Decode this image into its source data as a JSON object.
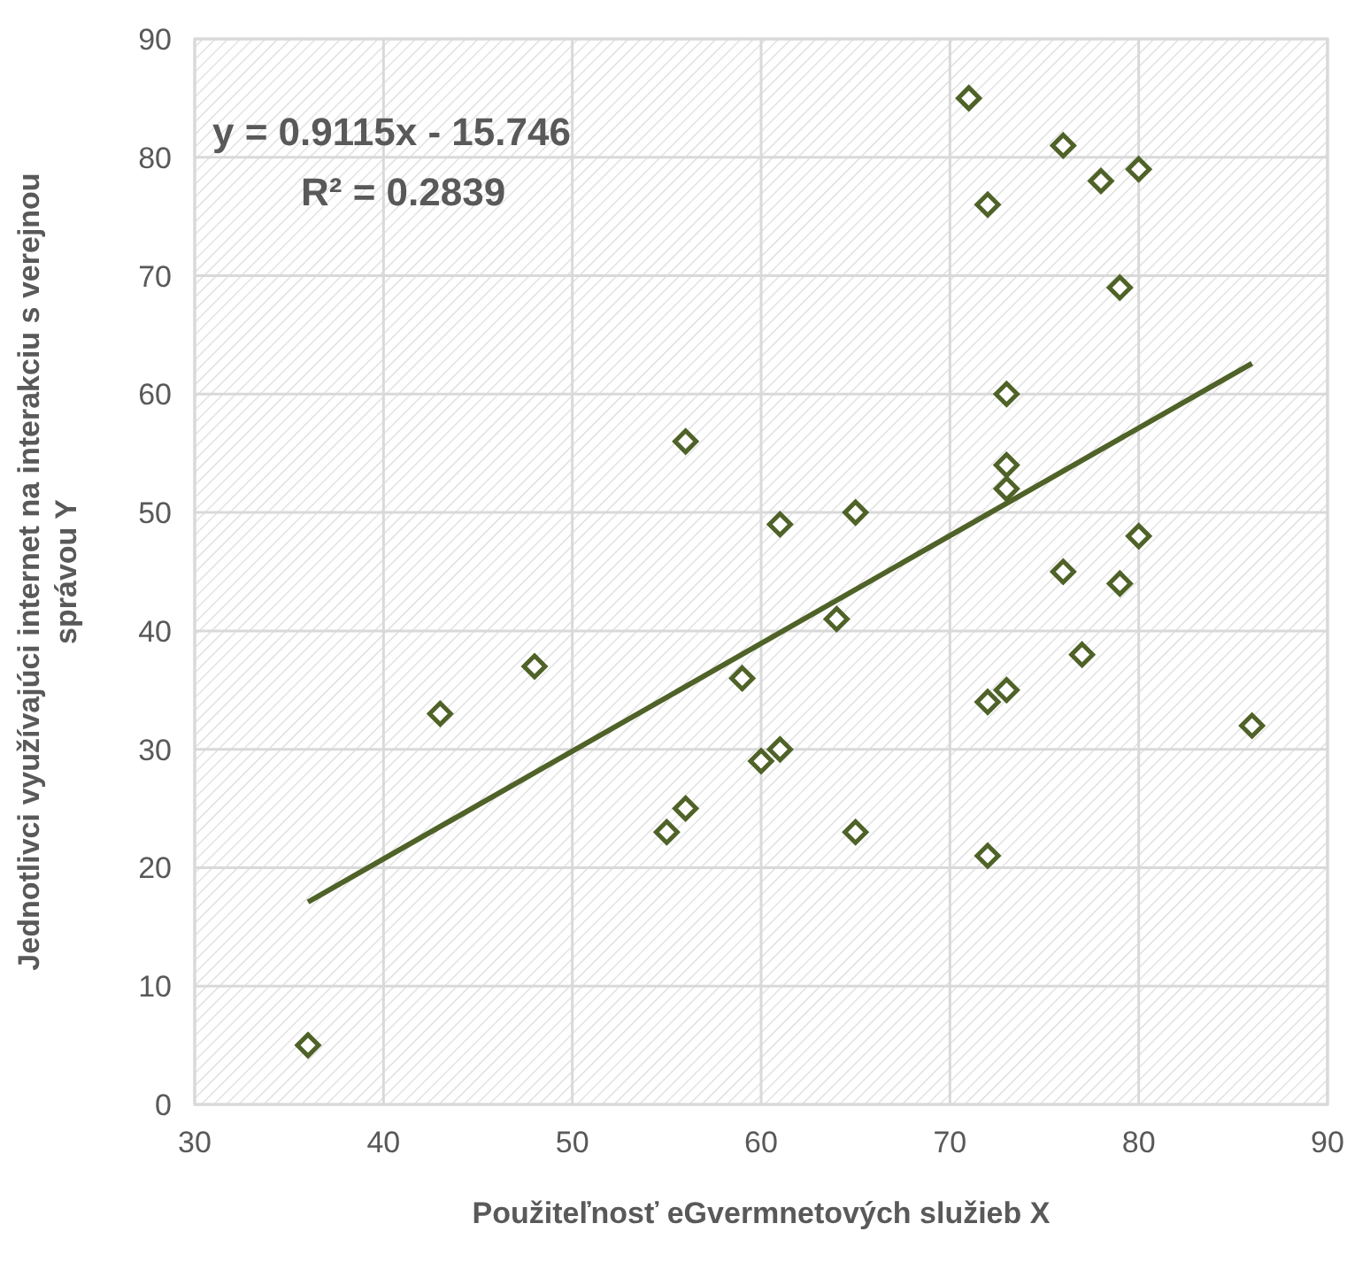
{
  "chart_data": {
    "type": "scatter",
    "xlabel": "Použiteľnosť eGvermnetových služieb X",
    "ylabel": "Jednotlivci využívajúci internet na interakciu s verejnou správou Y",
    "xlim": [
      30,
      90
    ],
    "xticks": [
      30,
      40,
      50,
      60,
      70,
      80,
      90
    ],
    "ylim": [
      0,
      90
    ],
    "yticks": [
      0,
      10,
      20,
      30,
      40,
      50,
      60,
      70,
      80,
      90
    ],
    "grid": true,
    "series": [
      {
        "color": "#4f6228",
        "marker": "diamond",
        "x": [
          36,
          43,
          48,
          55,
          56,
          56,
          59,
          60,
          61,
          61,
          64,
          65,
          65,
          71,
          72,
          72,
          72,
          73,
          73,
          73,
          73,
          76,
          76,
          77,
          78,
          79,
          79,
          80,
          80,
          86
        ],
        "values": [
          5,
          33,
          37,
          23,
          25,
          56,
          36,
          29,
          30,
          49,
          41,
          50,
          23,
          85,
          76,
          34,
          21,
          60,
          54,
          52,
          35,
          81,
          45,
          38,
          78,
          69,
          44,
          79,
          48,
          32
        ]
      },
      {
        "type": "line",
        "color": "#4f6228",
        "marker": "none",
        "line_style": "solid",
        "x": [
          36,
          86
        ],
        "values": [
          17.1,
          62.6
        ]
      }
    ],
    "annotations": [
      {
        "text": "y = 0.9115x - 15.746"
      },
      {
        "text": "R² = 0.2839"
      }
    ]
  }
}
